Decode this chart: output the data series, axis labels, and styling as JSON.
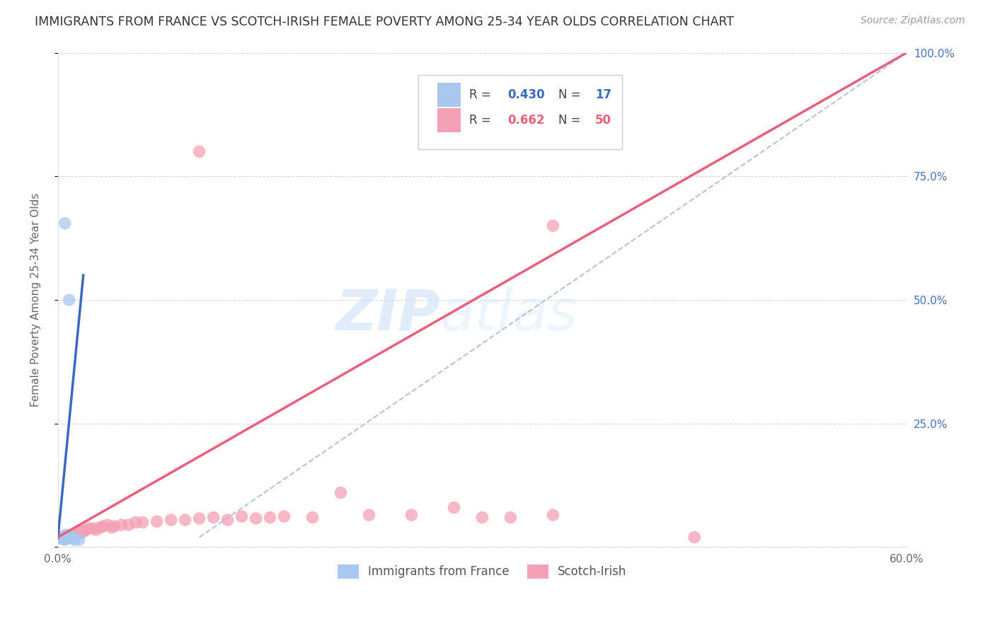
{
  "title": "IMMIGRANTS FROM FRANCE VS SCOTCH-IRISH FEMALE POVERTY AMONG 25-34 YEAR OLDS CORRELATION CHART",
  "source": "Source: ZipAtlas.com",
  "ylabel": "Female Poverty Among 25-34 Year Olds",
  "x_min": 0.0,
  "x_max": 0.6,
  "y_min": 0.0,
  "y_max": 1.0,
  "x_ticks": [
    0.0,
    0.1,
    0.2,
    0.3,
    0.4,
    0.5,
    0.6
  ],
  "x_tick_labels": [
    "0.0%",
    "",
    "",
    "",
    "",
    "",
    "60.0%"
  ],
  "y_ticks": [
    0.0,
    0.25,
    0.5,
    0.75,
    1.0
  ],
  "y_tick_labels_right": [
    "",
    "25.0%",
    "50.0%",
    "75.0%",
    "100.0%"
  ],
  "france_color": "#a8c8f0",
  "scotch_color": "#f4a0b5",
  "france_line_color": "#3a6abf",
  "scotch_line_color": "#e8607a",
  "diagonal_color": "#b0bcd8",
  "watermark_zip": "ZIP",
  "watermark_atlas": "atlas",
  "france_scatter": [
    [
      0.002,
      0.02
    ],
    [
      0.003,
      0.018
    ],
    [
      0.004,
      0.016
    ],
    [
      0.004,
      0.022
    ],
    [
      0.005,
      0.018
    ],
    [
      0.005,
      0.015
    ],
    [
      0.005,
      0.022
    ],
    [
      0.006,
      0.02
    ],
    [
      0.006,
      0.025
    ],
    [
      0.007,
      0.018
    ],
    [
      0.008,
      0.022
    ],
    [
      0.009,
      0.02
    ],
    [
      0.01,
      0.018
    ],
    [
      0.012,
      0.015
    ],
    [
      0.015,
      0.015
    ],
    [
      0.008,
      0.5
    ],
    [
      0.005,
      0.655
    ]
  ],
  "scotch_scatter": [
    [
      0.003,
      0.018
    ],
    [
      0.004,
      0.018
    ],
    [
      0.005,
      0.02
    ],
    [
      0.006,
      0.018
    ],
    [
      0.007,
      0.02
    ],
    [
      0.008,
      0.022
    ],
    [
      0.009,
      0.022
    ],
    [
      0.01,
      0.025
    ],
    [
      0.011,
      0.022
    ],
    [
      0.012,
      0.025
    ],
    [
      0.013,
      0.03
    ],
    [
      0.014,
      0.028
    ],
    [
      0.015,
      0.03
    ],
    [
      0.016,
      0.032
    ],
    [
      0.017,
      0.03
    ],
    [
      0.018,
      0.032
    ],
    [
      0.02,
      0.035
    ],
    [
      0.022,
      0.038
    ],
    [
      0.025,
      0.038
    ],
    [
      0.027,
      0.035
    ],
    [
      0.03,
      0.04
    ],
    [
      0.032,
      0.042
    ],
    [
      0.035,
      0.045
    ],
    [
      0.038,
      0.04
    ],
    [
      0.04,
      0.042
    ],
    [
      0.045,
      0.045
    ],
    [
      0.05,
      0.045
    ],
    [
      0.055,
      0.05
    ],
    [
      0.06,
      0.05
    ],
    [
      0.07,
      0.052
    ],
    [
      0.08,
      0.055
    ],
    [
      0.09,
      0.055
    ],
    [
      0.1,
      0.058
    ],
    [
      0.11,
      0.06
    ],
    [
      0.12,
      0.055
    ],
    [
      0.13,
      0.062
    ],
    [
      0.14,
      0.058
    ],
    [
      0.15,
      0.06
    ],
    [
      0.16,
      0.062
    ],
    [
      0.18,
      0.06
    ],
    [
      0.2,
      0.11
    ],
    [
      0.22,
      0.065
    ],
    [
      0.25,
      0.065
    ],
    [
      0.28,
      0.08
    ],
    [
      0.3,
      0.06
    ],
    [
      0.32,
      0.06
    ],
    [
      0.35,
      0.065
    ],
    [
      0.1,
      0.8
    ],
    [
      0.35,
      0.65
    ],
    [
      0.45,
      0.02
    ]
  ],
  "france_line_pts": [
    [
      0.0,
      0.018
    ],
    [
      0.018,
      0.55
    ]
  ],
  "scotch_line_pts": [
    [
      0.0,
      0.02
    ],
    [
      0.6,
      1.0
    ]
  ],
  "diagonal_line_pts": [
    [
      0.1,
      0.02
    ],
    [
      0.6,
      1.0
    ]
  ]
}
